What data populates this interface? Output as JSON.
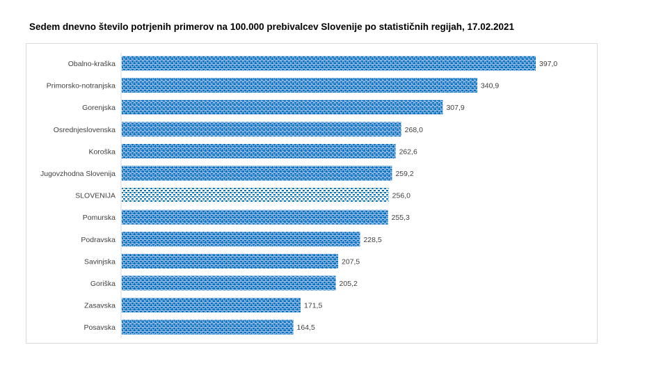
{
  "chart_data": {
    "type": "bar",
    "orientation": "horizontal",
    "title": "Sedem dnevno število potrjenih primerov na 100.000  prebivalcev Slovenije po statističnih regijah, 17.02.2021",
    "categories": [
      "Obalno-kraška",
      "Primorsko-notranjska",
      "Gorenjska",
      "Osrednjeslovenska",
      "Koroška",
      "Jugovzhodna Slovenija",
      "SLOVENIJA",
      "Pomurska",
      "Podravska",
      "Savinjska",
      "Goriška",
      "Zasavska",
      "Posavska"
    ],
    "values": [
      397.0,
      340.9,
      307.9,
      268.0,
      262.6,
      259.2,
      256.0,
      255.3,
      228.5,
      207.5,
      205.2,
      171.5,
      164.5
    ],
    "value_labels": [
      "397,0",
      "340,9",
      "307,9",
      "268,0",
      "262,6",
      "259,2",
      "256,0",
      "255,3",
      "228,5",
      "207,5",
      "205,2",
      "171,5",
      "164,5"
    ],
    "highlight": "SLOVENIJA",
    "xlim": [
      0,
      400
    ],
    "grid": false,
    "legend": "none",
    "colors": {
      "bar": "#0070c0",
      "bar_bg": "#8eb4e0",
      "highlight_bg": "#ffffff",
      "label": "#404040"
    }
  }
}
